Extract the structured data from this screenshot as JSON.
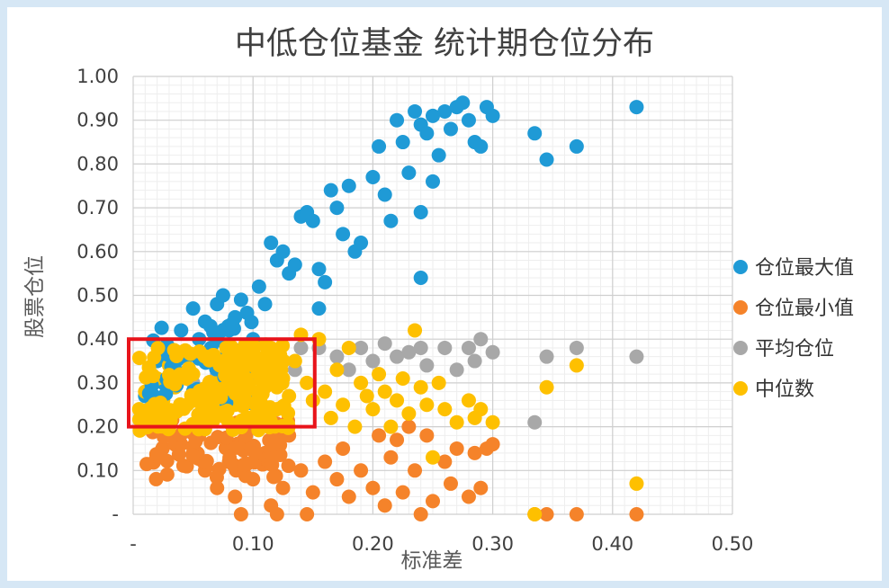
{
  "chart_data": {
    "type": "scatter",
    "title": "中低仓位基金  统计期仓位分布",
    "xlabel": "标准差",
    "ylabel": "股票仓位",
    "xlim": [
      0,
      0.5
    ],
    "ylim": [
      0,
      1.0
    ],
    "x_ticks": [
      {
        "value": 0,
        "label": "-"
      },
      {
        "value": 0.1,
        "label": "0.10"
      },
      {
        "value": 0.2,
        "label": "0.20"
      },
      {
        "value": 0.3,
        "label": "0.30"
      },
      {
        "value": 0.4,
        "label": "0.40"
      },
      {
        "value": 0.5,
        "label": "0.50"
      }
    ],
    "y_ticks": [
      {
        "value": 0,
        "label": "-"
      },
      {
        "value": 0.1,
        "label": "0.10"
      },
      {
        "value": 0.2,
        "label": "0.20"
      },
      {
        "value": 0.3,
        "label": "0.30"
      },
      {
        "value": 0.4,
        "label": "0.40"
      },
      {
        "value": 0.5,
        "label": "0.50"
      },
      {
        "value": 0.6,
        "label": "0.60"
      },
      {
        "value": 0.7,
        "label": "0.70"
      },
      {
        "value": 0.8,
        "label": "0.80"
      },
      {
        "value": 0.9,
        "label": "0.90"
      },
      {
        "value": 1.0,
        "label": "1.00"
      }
    ],
    "grid": true,
    "legend_position": "right",
    "highlight_box": {
      "x": [
        0,
        0.15
      ],
      "y": [
        0.2,
        0.4
      ],
      "color": "#e8141b"
    },
    "series": [
      {
        "name": "仓位最大值",
        "color": "#1f9ad6",
        "points": [
          [
            0.01,
            0.27
          ],
          [
            0.015,
            0.32
          ],
          [
            0.02,
            0.35
          ],
          [
            0.025,
            0.3
          ],
          [
            0.03,
            0.38
          ],
          [
            0.035,
            0.33
          ],
          [
            0.04,
            0.42
          ],
          [
            0.045,
            0.36
          ],
          [
            0.05,
            0.47
          ],
          [
            0.055,
            0.4
          ],
          [
            0.06,
            0.44
          ],
          [
            0.065,
            0.38
          ],
          [
            0.07,
            0.48
          ],
          [
            0.075,
            0.5
          ],
          [
            0.08,
            0.42
          ],
          [
            0.085,
            0.45
          ],
          [
            0.09,
            0.49
          ],
          [
            0.095,
            0.46
          ],
          [
            0.1,
            0.4
          ],
          [
            0.105,
            0.52
          ],
          [
            0.11,
            0.48
          ],
          [
            0.115,
            0.62
          ],
          [
            0.12,
            0.58
          ],
          [
            0.125,
            0.6
          ],
          [
            0.13,
            0.55
          ],
          [
            0.135,
            0.57
          ],
          [
            0.14,
            0.68
          ],
          [
            0.145,
            0.69
          ],
          [
            0.15,
            0.67
          ],
          [
            0.155,
            0.56
          ],
          [
            0.155,
            0.47
          ],
          [
            0.16,
            0.53
          ],
          [
            0.165,
            0.74
          ],
          [
            0.17,
            0.7
          ],
          [
            0.175,
            0.64
          ],
          [
            0.18,
            0.75
          ],
          [
            0.185,
            0.6
          ],
          [
            0.19,
            0.62
          ],
          [
            0.2,
            0.77
          ],
          [
            0.205,
            0.84
          ],
          [
            0.21,
            0.73
          ],
          [
            0.215,
            0.67
          ],
          [
            0.22,
            0.9
          ],
          [
            0.225,
            0.85
          ],
          [
            0.23,
            0.78
          ],
          [
            0.235,
            0.92
          ],
          [
            0.24,
            0.89
          ],
          [
            0.245,
            0.87
          ],
          [
            0.25,
            0.91
          ],
          [
            0.255,
            0.82
          ],
          [
            0.26,
            0.92
          ],
          [
            0.265,
            0.88
          ],
          [
            0.27,
            0.93
          ],
          [
            0.275,
            0.94
          ],
          [
            0.28,
            0.9
          ],
          [
            0.285,
            0.85
          ],
          [
            0.29,
            0.84
          ],
          [
            0.295,
            0.93
          ],
          [
            0.3,
            0.91
          ],
          [
            0.24,
            0.54
          ],
          [
            0.24,
            0.69
          ],
          [
            0.25,
            0.76
          ],
          [
            0.335,
            0.87
          ],
          [
            0.345,
            0.81
          ],
          [
            0.37,
            0.84
          ],
          [
            0.42,
            0.93
          ]
        ]
      },
      {
        "name": "仓位最小值",
        "color": "#f5832a",
        "points": [
          [
            0.02,
            0.2
          ],
          [
            0.03,
            0.18
          ],
          [
            0.04,
            0.16
          ],
          [
            0.05,
            0.14
          ],
          [
            0.06,
            0.1
          ],
          [
            0.07,
            0.06
          ],
          [
            0.08,
            0.12
          ],
          [
            0.085,
            0.04
          ],
          [
            0.09,
            0.0
          ],
          [
            0.1,
            0.08
          ],
          [
            0.11,
            0.14
          ],
          [
            0.115,
            0.02
          ],
          [
            0.12,
            0.0
          ],
          [
            0.125,
            0.06
          ],
          [
            0.13,
            0.18
          ],
          [
            0.14,
            0.1
          ],
          [
            0.145,
            0.0
          ],
          [
            0.15,
            0.05
          ],
          [
            0.16,
            0.12
          ],
          [
            0.17,
            0.08
          ],
          [
            0.175,
            0.15
          ],
          [
            0.18,
            0.04
          ],
          [
            0.19,
            0.1
          ],
          [
            0.2,
            0.06
          ],
          [
            0.205,
            0.18
          ],
          [
            0.21,
            0.02
          ],
          [
            0.215,
            0.13
          ],
          [
            0.22,
            0.17
          ],
          [
            0.225,
            0.05
          ],
          [
            0.23,
            0.2
          ],
          [
            0.235,
            0.1
          ],
          [
            0.24,
            0.0
          ],
          [
            0.245,
            0.18
          ],
          [
            0.25,
            0.03
          ],
          [
            0.26,
            0.12
          ],
          [
            0.265,
            0.07
          ],
          [
            0.27,
            0.15
          ],
          [
            0.28,
            0.04
          ],
          [
            0.285,
            0.14
          ],
          [
            0.29,
            0.06
          ],
          [
            0.295,
            0.15
          ],
          [
            0.3,
            0.16
          ],
          [
            0.335,
            0.0
          ],
          [
            0.345,
            0.0
          ],
          [
            0.37,
            0.0
          ],
          [
            0.42,
            0.0
          ]
        ]
      },
      {
        "name": "平均仓位",
        "color": "#a8a8a8",
        "points": [
          [
            0.05,
            0.3
          ],
          [
            0.07,
            0.32
          ],
          [
            0.09,
            0.28
          ],
          [
            0.1,
            0.31
          ],
          [
            0.12,
            0.36
          ],
          [
            0.135,
            0.33
          ],
          [
            0.14,
            0.38
          ],
          [
            0.155,
            0.38
          ],
          [
            0.17,
            0.36
          ],
          [
            0.18,
            0.33
          ],
          [
            0.19,
            0.38
          ],
          [
            0.2,
            0.35
          ],
          [
            0.21,
            0.39
          ],
          [
            0.22,
            0.36
          ],
          [
            0.23,
            0.37
          ],
          [
            0.24,
            0.38
          ],
          [
            0.245,
            0.34
          ],
          [
            0.26,
            0.38
          ],
          [
            0.27,
            0.33
          ],
          [
            0.28,
            0.38
          ],
          [
            0.285,
            0.35
          ],
          [
            0.29,
            0.4
          ],
          [
            0.3,
            0.37
          ],
          [
            0.335,
            0.21
          ],
          [
            0.345,
            0.36
          ],
          [
            0.37,
            0.38
          ],
          [
            0.42,
            0.36
          ]
        ]
      },
      {
        "name": "中位数",
        "color": "#fec000",
        "points": [
          [
            0.005,
            0.24
          ],
          [
            0.01,
            0.28
          ],
          [
            0.015,
            0.23
          ],
          [
            0.02,
            0.31
          ],
          [
            0.025,
            0.26
          ],
          [
            0.03,
            0.34
          ],
          [
            0.035,
            0.29
          ],
          [
            0.04,
            0.37
          ],
          [
            0.045,
            0.25
          ],
          [
            0.05,
            0.32
          ],
          [
            0.055,
            0.28
          ],
          [
            0.06,
            0.35
          ],
          [
            0.065,
            0.23
          ],
          [
            0.07,
            0.3
          ],
          [
            0.075,
            0.27
          ],
          [
            0.08,
            0.34
          ],
          [
            0.085,
            0.25
          ],
          [
            0.09,
            0.31
          ],
          [
            0.095,
            0.36
          ],
          [
            0.1,
            0.27
          ],
          [
            0.105,
            0.33
          ],
          [
            0.11,
            0.29
          ],
          [
            0.115,
            0.38
          ],
          [
            0.12,
            0.24
          ],
          [
            0.125,
            0.31
          ],
          [
            0.13,
            0.27
          ],
          [
            0.135,
            0.35
          ],
          [
            0.14,
            0.41
          ],
          [
            0.145,
            0.3
          ],
          [
            0.15,
            0.26
          ],
          [
            0.155,
            0.4
          ],
          [
            0.16,
            0.28
          ],
          [
            0.165,
            0.22
          ],
          [
            0.17,
            0.33
          ],
          [
            0.175,
            0.25
          ],
          [
            0.18,
            0.38
          ],
          [
            0.185,
            0.2
          ],
          [
            0.19,
            0.3
          ],
          [
            0.195,
            0.27
          ],
          [
            0.2,
            0.24
          ],
          [
            0.205,
            0.32
          ],
          [
            0.21,
            0.28
          ],
          [
            0.215,
            0.2
          ],
          [
            0.22,
            0.26
          ],
          [
            0.225,
            0.31
          ],
          [
            0.23,
            0.23
          ],
          [
            0.235,
            0.42
          ],
          [
            0.24,
            0.29
          ],
          [
            0.245,
            0.25
          ],
          [
            0.25,
            0.13
          ],
          [
            0.255,
            0.3
          ],
          [
            0.26,
            0.24
          ],
          [
            0.27,
            0.21
          ],
          [
            0.28,
            0.26
          ],
          [
            0.285,
            0.22
          ],
          [
            0.29,
            0.24
          ],
          [
            0.3,
            0.21
          ],
          [
            0.335,
            0.0
          ],
          [
            0.345,
            0.29
          ],
          [
            0.37,
            0.34
          ],
          [
            0.42,
            0.07
          ]
        ]
      }
    ]
  }
}
